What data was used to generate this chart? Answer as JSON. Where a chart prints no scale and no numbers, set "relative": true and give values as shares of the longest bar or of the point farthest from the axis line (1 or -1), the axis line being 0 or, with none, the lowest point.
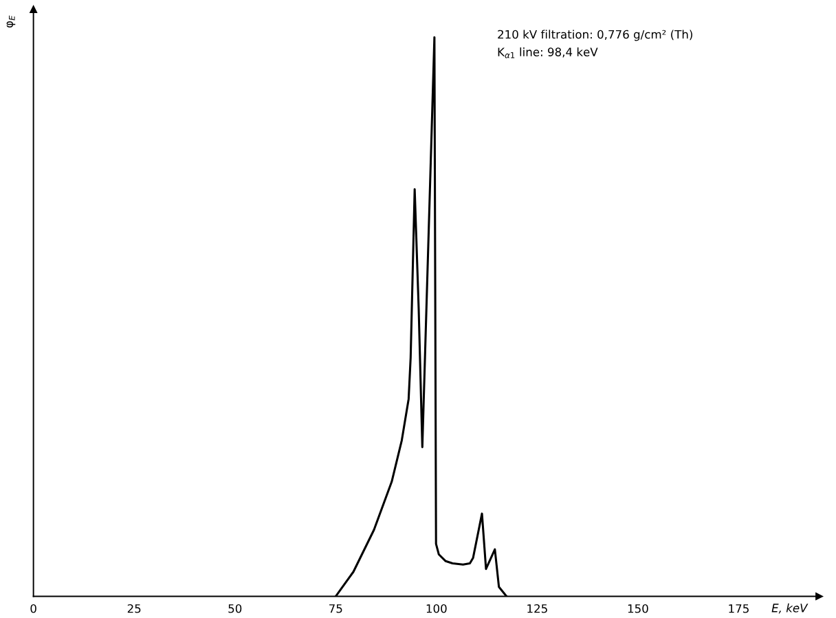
{
  "chart_data": {
    "type": "line",
    "relative": true,
    "xlabel": "E, keV",
    "ylabel": "φ$_{E}$",
    "xlim": [
      0,
      195
    ],
    "xticks": [
      0,
      25,
      50,
      75,
      100,
      125,
      150,
      175
    ],
    "annotations": [
      "210 kV filtration: 0,776 g/cm² (Th)",
      "K$_{α1}$ line: 98,4 keV"
    ],
    "series": [
      {
        "color": "#000000",
        "x": [
          75,
          79.4,
          84.5,
          88.9,
          91.4,
          93.1,
          93.6,
          94.6,
          95.6,
          96.5,
          99.5,
          99.9,
          100.6,
          102.3,
          104,
          106.6,
          108.3,
          109.1,
          111.3,
          112.3,
          114.5,
          115.5,
          117.4
        ],
        "values": [
          0,
          0.044,
          0.119,
          0.205,
          0.279,
          0.353,
          0.427,
          0.728,
          0.514,
          0.267,
          1.0,
          0.094,
          0.075,
          0.063,
          0.059,
          0.057,
          0.059,
          0.069,
          0.148,
          0.049,
          0.084,
          0.017,
          0
        ]
      }
    ],
    "grid": false,
    "legend": false,
    "marker": "none",
    "line_style": "solid"
  }
}
